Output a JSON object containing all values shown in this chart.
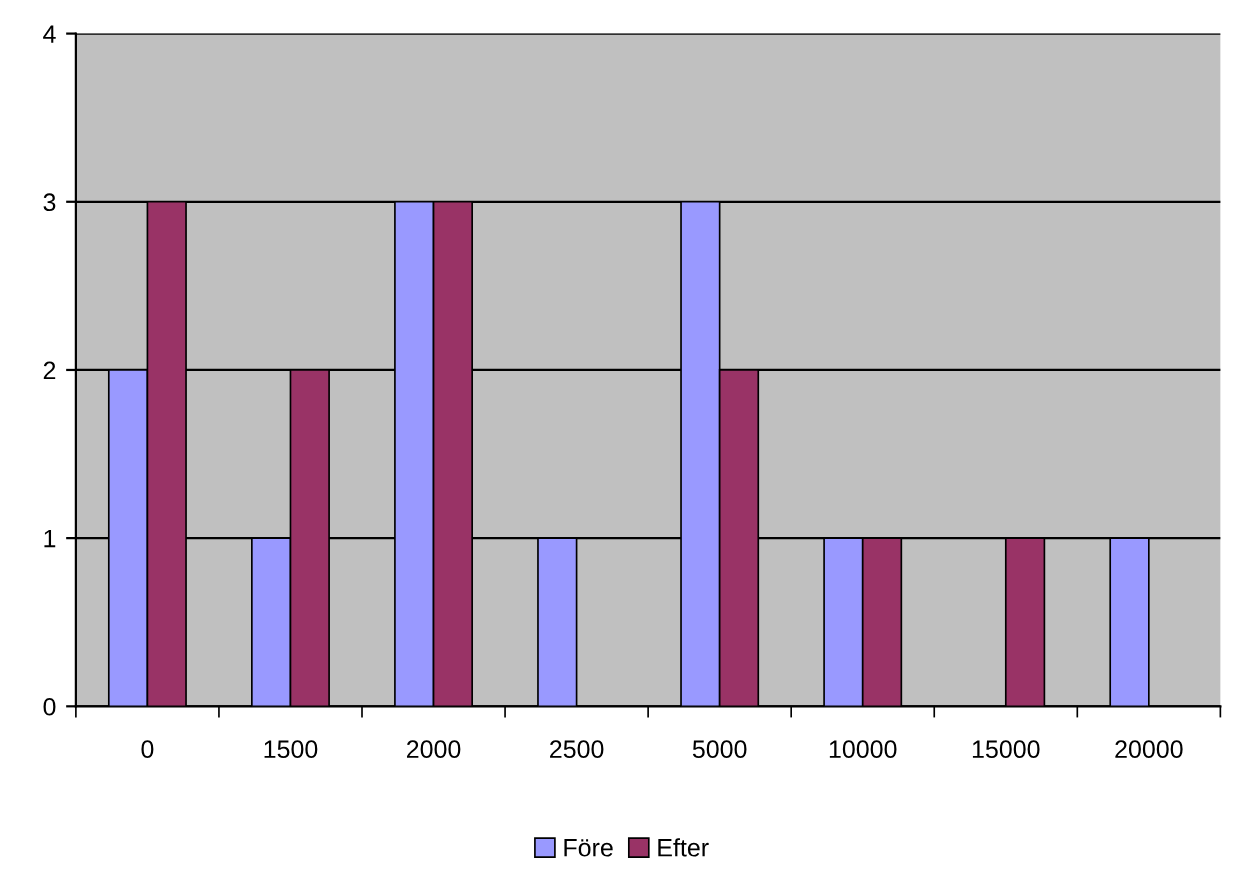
{
  "chart_data": {
    "type": "bar",
    "categories": [
      "0",
      "1500",
      "2000",
      "2500",
      "5000",
      "10000",
      "15000",
      "20000"
    ],
    "series": [
      {
        "name": "Före",
        "color": "#9999ff",
        "values": [
          2,
          1,
          3,
          1,
          3,
          1,
          0,
          1
        ]
      },
      {
        "name": "Efter",
        "color": "#993366",
        "values": [
          3,
          2,
          3,
          0,
          2,
          1,
          1,
          0
        ]
      }
    ],
    "ylim": [
      0,
      4
    ],
    "yticks": [
      0,
      1,
      2,
      3,
      4
    ],
    "grid": "y",
    "legend": "bottom"
  }
}
